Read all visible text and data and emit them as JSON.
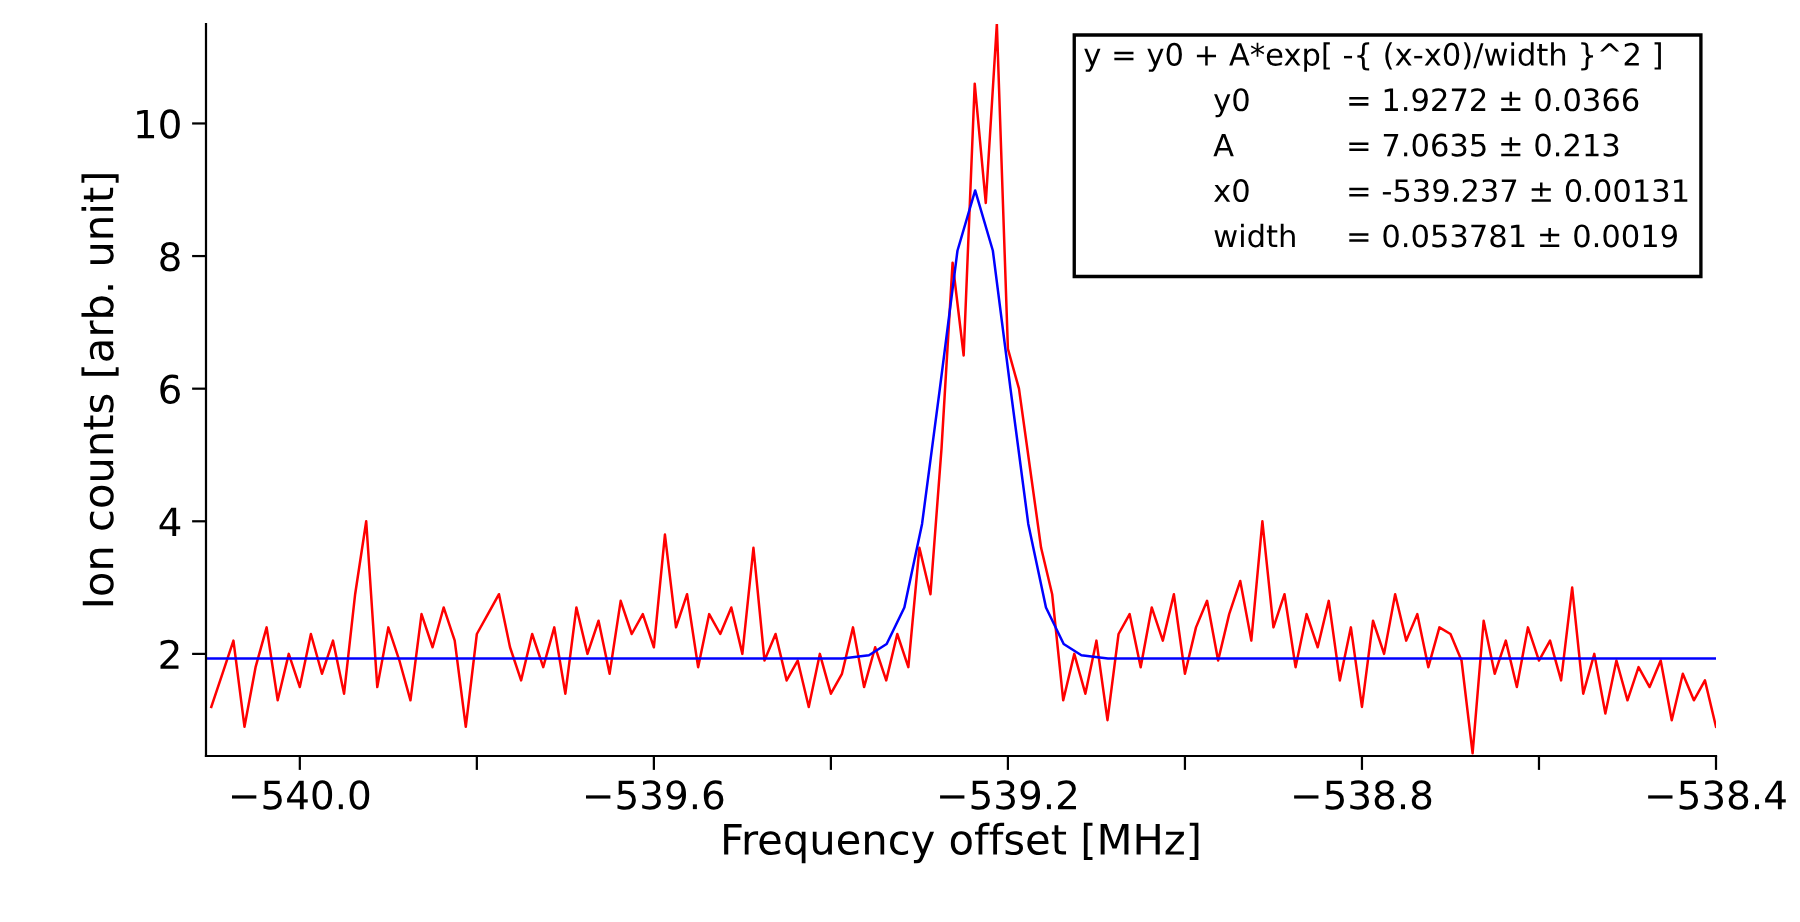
{
  "chart_data": {
    "type": "line",
    "xlabel": "Frequency offset [MHz]",
    "ylabel": "Ion counts [arb. unit]",
    "xlim": [
      -540.106,
      -538.4
    ],
    "xticks": [
      {
        "value": -540.0,
        "label": "−540.0"
      },
      {
        "value": -539.8,
        "label": null
      },
      {
        "value": -539.6,
        "label": "−539.6"
      },
      {
        "value": -539.4,
        "label": null
      },
      {
        "value": -539.2,
        "label": "−539.2"
      },
      {
        "value": -539.0,
        "label": null
      },
      {
        "value": -538.8,
        "label": "−538.8"
      },
      {
        "value": -538.6,
        "label": null
      },
      {
        "value": -538.4,
        "label": "−538.4"
      }
    ],
    "ylim": [
      0.46,
      11.5
    ],
    "yticks": [
      2,
      4,
      6,
      8,
      10
    ],
    "grid": false,
    "legend": false,
    "series": [
      {
        "color": "#ff0000",
        "values": [
          1.2,
          1.7,
          2.2,
          0.9,
          1.8,
          2.4,
          1.3,
          2.0,
          1.5,
          2.3,
          1.7,
          2.2,
          1.4,
          2.9,
          4.0,
          1.5,
          2.4,
          1.9,
          1.3,
          2.6,
          2.1,
          2.7,
          2.2,
          0.9,
          2.3,
          2.6,
          2.9,
          2.1,
          1.6,
          2.3,
          1.8,
          2.4,
          1.4,
          2.7,
          2.0,
          2.5,
          1.7,
          2.8,
          2.3,
          2.6,
          2.1,
          3.8,
          2.4,
          2.9,
          1.8,
          2.6,
          2.3,
          2.7,
          2.0,
          3.6,
          1.9,
          2.3,
          1.6,
          1.9,
          1.2,
          2.0,
          1.4,
          1.7,
          2.4,
          1.5,
          2.1,
          1.6,
          2.3,
          1.8,
          3.6,
          2.9,
          5.1,
          7.9,
          6.5,
          10.6,
          8.8,
          11.5,
          6.6,
          6.0,
          4.8,
          3.6,
          2.9,
          1.3,
          2.0,
          1.4,
          2.2,
          1.0,
          2.3,
          2.6,
          1.8,
          2.7,
          2.2,
          2.9,
          1.7,
          2.4,
          2.8,
          1.9,
          2.6,
          3.1,
          2.2,
          4.0,
          2.4,
          2.9,
          1.8,
          2.6,
          2.1,
          2.8,
          1.6,
          2.4,
          1.2,
          2.5,
          2.0,
          2.9,
          2.2,
          2.6,
          1.8,
          2.4,
          2.3,
          1.9,
          0.5,
          2.5,
          1.7,
          2.2,
          1.5,
          2.4,
          1.9,
          2.2,
          1.6,
          3.0,
          1.4,
          2.0,
          1.1,
          1.9,
          1.3,
          1.8,
          1.5,
          1.9,
          1.0,
          1.7,
          1.3,
          1.6,
          0.9
        ],
        "x": [
          -540.1,
          -540.0875,
          -540.075,
          -540.0625,
          -540.05,
          -540.0375,
          -540.025,
          -540.0125,
          -540.0,
          -539.9875,
          -539.975,
          -539.9625,
          -539.95,
          -539.9375,
          -539.925,
          -539.9125,
          -539.9,
          -539.8875,
          -539.875,
          -539.8625,
          -539.85,
          -539.8375,
          -539.825,
          -539.8125,
          -539.8,
          -539.7875,
          -539.775,
          -539.7625,
          -539.75,
          -539.7375,
          -539.725,
          -539.7125,
          -539.7,
          -539.6875,
          -539.675,
          -539.6625,
          -539.65,
          -539.6375,
          -539.625,
          -539.6125,
          -539.6,
          -539.5875,
          -539.575,
          -539.5625,
          -539.55,
          -539.5375,
          -539.525,
          -539.5125,
          -539.5,
          -539.4875,
          -539.475,
          -539.4625,
          -539.45,
          -539.4375,
          -539.425,
          -539.4125,
          -539.4,
          -539.3875,
          -539.375,
          -539.3625,
          -539.35,
          -539.3375,
          -539.325,
          -539.3125,
          -539.3,
          -539.2875,
          -539.275,
          -539.2625,
          -539.25,
          -539.2375,
          -539.225,
          -539.2125,
          -539.2,
          -539.1875,
          -539.175,
          -539.1625,
          -539.15,
          -539.1375,
          -539.125,
          -539.1125,
          -539.1,
          -539.0875,
          -539.075,
          -539.0625,
          -539.05,
          -539.0375,
          -539.025,
          -539.0125,
          -539.0,
          -538.9875,
          -538.975,
          -538.9625,
          -538.95,
          -538.9375,
          -538.925,
          -538.9125,
          -538.9,
          -538.8875,
          -538.875,
          -538.8625,
          -538.85,
          -538.8375,
          -538.825,
          -538.8125,
          -538.8,
          -538.7875,
          -538.775,
          -538.7625,
          -538.75,
          -538.7375,
          -538.725,
          -538.7125,
          -538.7,
          -538.6875,
          -538.675,
          -538.6625,
          -538.65,
          -538.6375,
          -538.625,
          -538.6125,
          -538.6,
          -538.5875,
          -538.575,
          -538.5625,
          -538.55,
          -538.5375,
          -538.525,
          -538.5125,
          -538.5,
          -538.4875,
          -538.475,
          -538.4625,
          -538.45,
          -538.4375,
          -538.425,
          -538.4125,
          -538.4
        ]
      },
      {
        "color": "#0000ff",
        "x": [
          -540.106,
          -539.387,
          -539.357,
          -539.337,
          -539.317,
          -539.297,
          -539.277,
          -539.257,
          -539.237,
          -539.217,
          -539.197,
          -539.177,
          -539.157,
          -539.137,
          -539.117,
          -539.087,
          -538.4
        ],
        "values": [
          1.93,
          1.93,
          1.98,
          2.15,
          2.7,
          3.96,
          5.99,
          8.08,
          8.99,
          8.08,
          5.99,
          3.96,
          2.7,
          2.15,
          1.98,
          1.93,
          1.93
        ]
      }
    ],
    "annotations": [
      "y = y0 + A*exp[ -{ (x-x0)/width }^2 ]",
      "y0 = 1.9272 ± 0.0366",
      "A = 7.0635 ± 0.213",
      "x0 = -539.237 ± 0.00131",
      "width = 0.053781 ± 0.0019"
    ]
  }
}
